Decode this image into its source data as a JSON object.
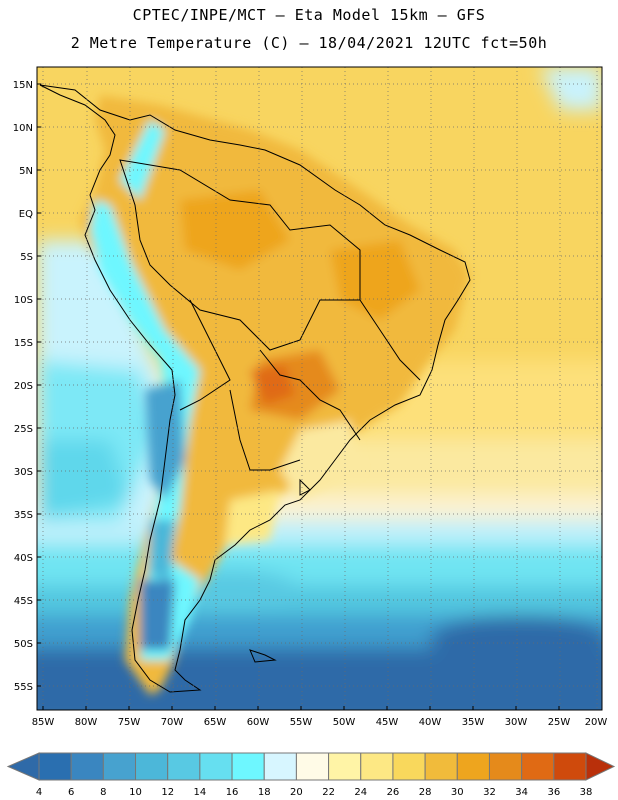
{
  "header": {
    "title_line1": "CPTEC/INPE/MCT –  Eta Model 15km – GFS",
    "title_line2": "2 Metre Temperature (C) – 18/04/2021 12UTC fct=50h"
  },
  "map": {
    "lat_labels": [
      "15N",
      "10N",
      "5N",
      "EQ",
      "5S",
      "10S",
      "15S",
      "20S",
      "25S",
      "30S",
      "35S",
      "40S",
      "45S",
      "50S",
      "55S"
    ],
    "lon_labels": [
      "85W",
      "80W",
      "75W",
      "70W",
      "65W",
      "60W",
      "55W",
      "50W",
      "45W",
      "40W",
      "35W",
      "30W",
      "25W",
      "20W"
    ],
    "graticule": "dotted",
    "region": "South America"
  },
  "legend": {
    "values": [
      "4",
      "6",
      "8",
      "10",
      "12",
      "14",
      "16",
      "18",
      "20",
      "22",
      "24",
      "26",
      "28",
      "30",
      "32",
      "34",
      "36",
      "38"
    ],
    "colors": [
      "#2f6aa8",
      "#2a6fb0",
      "#3a86c0",
      "#47a2cf",
      "#4cb7d9",
      "#58c9e3",
      "#66dff0",
      "#6ef7ff",
      "#d7f6ff",
      "#fffbe7",
      "#fff4a6",
      "#fde884",
      "#f9d85c",
      "#f1bb3b",
      "#eea51e",
      "#e58a1b",
      "#e06a14",
      "#cf4a0c",
      "#b9300a"
    ]
  }
}
